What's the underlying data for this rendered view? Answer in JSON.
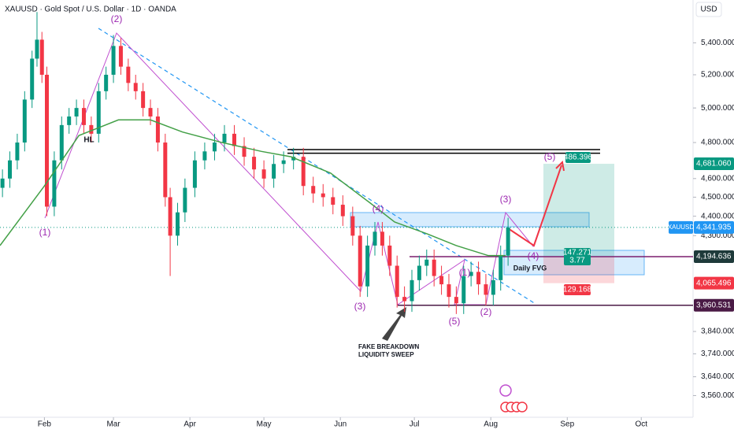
{
  "chart_data": {
    "type": "candlestick",
    "title": "XAUUSD · Gold Spot / U.S. Dollar · 1D · OANDA",
    "currency": "USD",
    "log_scale": true,
    "up_color": "#089981",
    "down_color": "#f23645",
    "xlim": [
      13,
      294
    ],
    "xticks": [
      {
        "value": 31,
        "label": "Feb"
      },
      {
        "value": 59,
        "label": "Mar"
      },
      {
        "value": 90,
        "label": "Apr"
      },
      {
        "value": 120,
        "label": "May"
      },
      {
        "value": 151,
        "label": "Jun"
      },
      {
        "value": 181,
        "label": "Jul"
      },
      {
        "value": 212,
        "label": "Aug"
      },
      {
        "value": 243,
        "label": "Sep"
      },
      {
        "value": 273,
        "label": "Oct"
      }
    ],
    "ylim": [
      3470,
      5680
    ],
    "yticks": [
      {
        "value": 5400,
        "label": "5,400.000"
      },
      {
        "value": 5200,
        "label": "5,200.000"
      },
      {
        "value": 5000,
        "label": "5,000.000"
      },
      {
        "value": 4800,
        "label": "4,800.000"
      },
      {
        "value": 4600,
        "label": "4,600.000"
      },
      {
        "value": 4500,
        "label": "4,500.000"
      },
      {
        "value": 4400,
        "label": "4,400.000"
      },
      {
        "value": 4300,
        "label": "4,300.000"
      },
      {
        "value": 3840,
        "label": "3,840.000"
      },
      {
        "value": 3740,
        "label": "3,740.000"
      },
      {
        "value": 3640,
        "label": "3,640.000"
      },
      {
        "value": 3560,
        "label": "3,560.000"
      }
    ],
    "x": [
      14,
      17,
      20,
      23,
      26,
      28,
      30,
      32,
      35,
      38,
      41,
      44,
      47,
      50,
      53,
      56,
      59,
      62,
      65,
      68,
      71,
      74,
      77,
      80,
      82,
      85,
      88,
      92,
      96,
      100,
      104,
      108,
      112,
      116,
      120,
      124,
      128,
      132,
      136,
      140,
      144,
      148,
      152,
      156,
      159,
      162,
      165,
      168,
      171,
      174,
      177,
      180,
      183,
      186,
      189,
      192,
      195,
      198,
      201,
      204,
      207,
      210,
      213,
      216,
      219
    ],
    "open": [
      4550,
      4600,
      4700,
      4800,
      5050,
      5300,
      5420,
      5200,
      4450,
      4700,
      4900,
      4950,
      5000,
      4900,
      4850,
      5100,
      5200,
      5380,
      5250,
      5150,
      5100,
      5000,
      4950,
      4800,
      4500,
      4300,
      4420,
      4550,
      4700,
      4750,
      4800,
      4850,
      4780,
      4720,
      4650,
      4600,
      4680,
      4700,
      4720,
      4560,
      4520,
      4500,
      4460,
      4400,
      4300,
      4050,
      4250,
      4320,
      4250,
      4150,
      4000,
      3980,
      4080,
      4150,
      4180,
      4100,
      4060,
      4000,
      3970,
      4100,
      4120,
      4060,
      4010,
      4080,
      4200
    ],
    "high": [
      4650,
      4750,
      4850,
      5100,
      5350,
      5600,
      5470,
      5250,
      4750,
      4950,
      5000,
      5050,
      5050,
      4950,
      5150,
      5250,
      5450,
      5430,
      5300,
      5200,
      5150,
      5050,
      5000,
      4850,
      4550,
      4470,
      4600,
      4750,
      4800,
      4850,
      4900,
      4900,
      4830,
      4770,
      4700,
      4730,
      4750,
      4770,
      4770,
      4610,
      4570,
      4550,
      4510,
      4450,
      4350,
      4300,
      4370,
      4370,
      4300,
      4200,
      4050,
      4130,
      4200,
      4230,
      4230,
      4150,
      4110,
      4050,
      4150,
      4170,
      4170,
      4110,
      4130,
      4250,
      4392
    ],
    "low": [
      4500,
      4550,
      4650,
      4750,
      5000,
      5250,
      5150,
      4400,
      4400,
      4650,
      4850,
      4900,
      4850,
      4800,
      4800,
      5050,
      5150,
      5200,
      5100,
      5050,
      4950,
      4900,
      4750,
      4450,
      4100,
      4250,
      4370,
      4500,
      4650,
      4700,
      4750,
      4730,
      4670,
      4600,
      4550,
      4550,
      4630,
      4650,
      4510,
      4470,
      4450,
      4410,
      4350,
      4250,
      4000,
      4000,
      4200,
      4200,
      4100,
      3950,
      3930,
      3930,
      4030,
      4100,
      4050,
      4010,
      3950,
      3920,
      3920,
      4050,
      4010,
      3960,
      3960,
      4030,
      4150
    ],
    "close": [
      4600,
      4700,
      4800,
      5050,
      5300,
      5420,
      5200,
      4450,
      4700,
      4900,
      4950,
      5000,
      4900,
      4850,
      5100,
      5200,
      5380,
      5250,
      5150,
      5100,
      5000,
      4950,
      4800,
      4500,
      4300,
      4420,
      4550,
      4700,
      4750,
      4800,
      4850,
      4780,
      4720,
      4650,
      4600,
      4680,
      4700,
      4720,
      4560,
      4520,
      4500,
      4460,
      4400,
      4300,
      4050,
      4250,
      4320,
      4250,
      4150,
      4000,
      3980,
      4080,
      4150,
      4180,
      4100,
      4060,
      4000,
      3970,
      4100,
      4120,
      4060,
      4010,
      4080,
      4200,
      4342
    ],
    "ma": {
      "color": "#43a047",
      "x": [
        13,
        31,
        45,
        61,
        74,
        87,
        103,
        119,
        131,
        147,
        163,
        173,
        186,
        198,
        211,
        218
      ],
      "values": [
        4250,
        4560,
        4840,
        4930,
        4930,
        4860,
        4800,
        4750,
        4720,
        4630,
        4470,
        4370,
        4310,
        4250,
        4200,
        4200
      ]
    },
    "levels": [
      {
        "value": 4760,
        "color": "#000000"
      },
      {
        "value": 4740,
        "color": "#000000"
      },
      {
        "value": 4194.636,
        "color": "#7b1f6e"
      },
      {
        "value": 3960.531,
        "color": "#4a1a45"
      }
    ],
    "price_labels": [
      {
        "value": 4681.06,
        "label": "4,681.060",
        "color": "#089981"
      },
      {
        "value": 4341.935,
        "label": "4,341.935",
        "color": "#2196f3"
      },
      {
        "value": 4194.636,
        "label": "4,194.636",
        "color": "#1e3a3a"
      },
      {
        "value": 4065.496,
        "label": "4,065.496",
        "color": "#f23645"
      },
      {
        "value": 3960.531,
        "label": "3,960.531",
        "color": "#4a1a45"
      }
    ],
    "symbol_label": "XAUUSD",
    "position": {
      "target": "486.396",
      "entry_lines": [
        "147.271",
        "3.77"
      ],
      "stop": "129.168"
    },
    "annotations": [
      "(1)",
      "(2)",
      "HL",
      "(3)",
      "(4)",
      "(1)",
      "(5)",
      "(2)",
      "(3)",
      "(4)",
      "(5)",
      "Daily FVG",
      "FAKE BREAKDOWN",
      "LIQUIDITY SWEEP"
    ]
  }
}
